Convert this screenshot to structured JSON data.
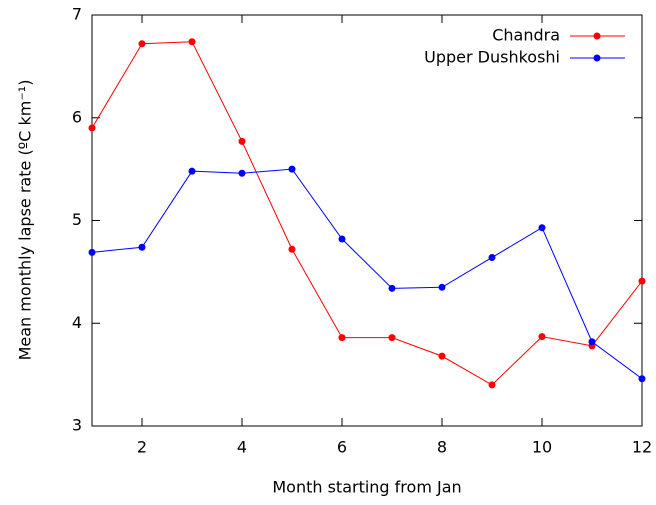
{
  "chart_data": {
    "type": "line",
    "xlabel": "Month starting from Jan",
    "ylabel": "Mean monthly lapse rate (ºC km⁻¹)",
    "x": [
      1,
      2,
      3,
      4,
      5,
      6,
      7,
      8,
      9,
      10,
      11,
      12
    ],
    "series": [
      {
        "name": "Chandra",
        "color": "#ff0000",
        "values": [
          5.9,
          6.72,
          6.74,
          5.77,
          4.72,
          3.86,
          3.86,
          3.68,
          3.4,
          3.87,
          3.78,
          4.41
        ]
      },
      {
        "name": "Upper Dushkoshi",
        "color": "#0000ff",
        "values": [
          4.69,
          4.74,
          5.48,
          5.46,
          5.5,
          4.82,
          4.34,
          4.35,
          4.64,
          4.93,
          3.82,
          3.46
        ]
      }
    ],
    "xlim": [
      1,
      12
    ],
    "xticks": [
      2,
      4,
      6,
      8,
      10,
      12
    ],
    "ylim": [
      3,
      7
    ],
    "yticks": [
      3,
      4,
      5,
      6,
      7
    ],
    "legend": "top-right"
  }
}
